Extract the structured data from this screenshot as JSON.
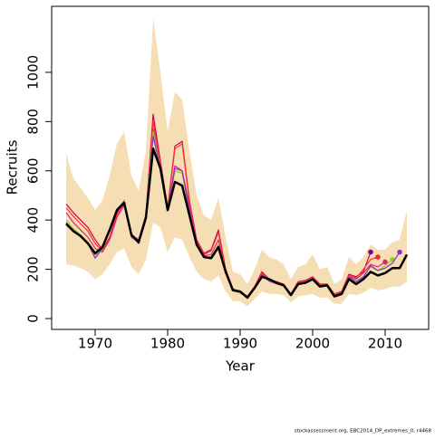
{
  "chart_data": {
    "type": "line",
    "x_label": "Year",
    "y_label": "Recruits",
    "footnote": "stockassessment.org, EBC2014_DP_extremes_0, r4468",
    "x": [
      1966,
      1967,
      1968,
      1969,
      1970,
      1971,
      1972,
      1973,
      1974,
      1975,
      1976,
      1977,
      1978,
      1979,
      1980,
      1981,
      1982,
      1983,
      1984,
      1985,
      1986,
      1987,
      1988,
      1989,
      1990,
      1991,
      1992,
      1993,
      1994,
      1995,
      1996,
      1997,
      1998,
      1999,
      2000,
      2001,
      2002,
      2003,
      2004,
      2005,
      2006,
      2007,
      2008,
      2009,
      2010,
      2011,
      2012,
      2013
    ],
    "xlim": [
      1964,
      2016
    ],
    "xticks": [
      1970,
      1980,
      1990,
      2000,
      2010
    ],
    "ylim": [
      -44,
      1268
    ],
    "yticks": [
      0,
      200,
      400,
      600,
      800,
      1000
    ],
    "band": {
      "color": "#f5deb3",
      "upper": [
        670,
        570,
        530,
        490,
        440,
        480,
        580,
        710,
        760,
        580,
        520,
        680,
        1220,
        1000,
        760,
        920,
        890,
        680,
        500,
        420,
        400,
        490,
        330,
        190,
        180,
        140,
        200,
        280,
        250,
        240,
        220,
        160,
        210,
        220,
        260,
        200,
        210,
        140,
        160,
        250,
        220,
        250,
        300,
        280,
        280,
        310,
        320,
        440
      ],
      "lower": [
        220,
        215,
        205,
        190,
        160,
        180,
        220,
        270,
        285,
        210,
        180,
        240,
        390,
        370,
        270,
        330,
        320,
        250,
        190,
        160,
        150,
        175,
        110,
        70,
        70,
        50,
        80,
        110,
        100,
        100,
        95,
        65,
        90,
        95,
        100,
        85,
        85,
        60,
        60,
        100,
        95,
        105,
        125,
        115,
        120,
        130,
        130,
        150
      ]
    },
    "series": [
      {
        "color": "#cc0055",
        "values": [
          465,
          430,
          400,
          370,
          320,
          280,
          330,
          430,
          480,
          340,
          320,
          420,
          830,
          640,
          450,
          700,
          720,
          480,
          320,
          265,
          280,
          360,
          200,
          120,
          110,
          90,
          130,
          190,
          160,
          150,
          140,
          100,
          150,
          155,
          170,
          140,
          140,
          100,
          110,
          180,
          170,
          190,
          270,
          null,
          null,
          null,
          null,
          null
        ],
        "end_color": "#800080"
      },
      {
        "color": "#ff3030",
        "values": [
          450,
          415,
          385,
          355,
          305,
          275,
          325,
          420,
          470,
          335,
          315,
          410,
          800,
          630,
          445,
          690,
          710,
          475,
          315,
          260,
          275,
          350,
          195,
          118,
          108,
          88,
          128,
          185,
          158,
          148,
          138,
          98,
          148,
          152,
          168,
          138,
          138,
          98,
          108,
          175,
          165,
          200,
          240,
          250,
          null,
          null,
          null,
          null
        ],
        "end_color": "#ff2020"
      },
      {
        "color": "#e0207a",
        "values": [
          430,
          390,
          360,
          330,
          285,
          270,
          320,
          410,
          460,
          330,
          310,
          400,
          770,
          620,
          440,
          620,
          600,
          460,
          310,
          255,
          260,
          320,
          190,
          115,
          105,
          85,
          125,
          180,
          155,
          145,
          135,
          95,
          145,
          150,
          165,
          135,
          135,
          95,
          105,
          170,
          160,
          185,
          220,
          210,
          230,
          null,
          null,
          null
        ],
        "end_color": "#e0207a"
      },
      {
        "color": "#90d020",
        "values": [
          400,
          365,
          340,
          310,
          255,
          280,
          355,
          440,
          480,
          335,
          305,
          405,
          760,
          610,
          440,
          600,
          590,
          440,
          305,
          250,
          250,
          300,
          185,
          115,
          105,
          85,
          122,
          175,
          152,
          142,
          132,
          94,
          142,
          148,
          163,
          133,
          133,
          94,
          104,
          168,
          152,
          172,
          210,
          195,
          215,
          240,
          null,
          null
        ],
        "end_color": "#90d020"
      },
      {
        "color": "#9030c0",
        "values": [
          390,
          355,
          335,
          305,
          245,
          285,
          360,
          445,
          475,
          335,
          305,
          405,
          740,
          610,
          440,
          610,
          600,
          440,
          305,
          250,
          250,
          295,
          185,
          115,
          105,
          85,
          122,
          175,
          152,
          142,
          132,
          94,
          142,
          148,
          163,
          133,
          133,
          94,
          104,
          168,
          150,
          168,
          215,
          195,
          205,
          225,
          270,
          null
        ],
        "end_color": "#9030c0"
      },
      {
        "color": "#000000",
        "width": 2.5,
        "values": [
          385,
          355,
          335,
          305,
          265,
          290,
          360,
          440,
          470,
          340,
          310,
          410,
          690,
          610,
          440,
          555,
          540,
          420,
          300,
          250,
          245,
          290,
          190,
          115,
          110,
          85,
          125,
          170,
          160,
          145,
          135,
          95,
          140,
          145,
          160,
          130,
          135,
          90,
          100,
          160,
          140,
          160,
          190,
          175,
          185,
          205,
          205,
          260
        ]
      }
    ]
  }
}
